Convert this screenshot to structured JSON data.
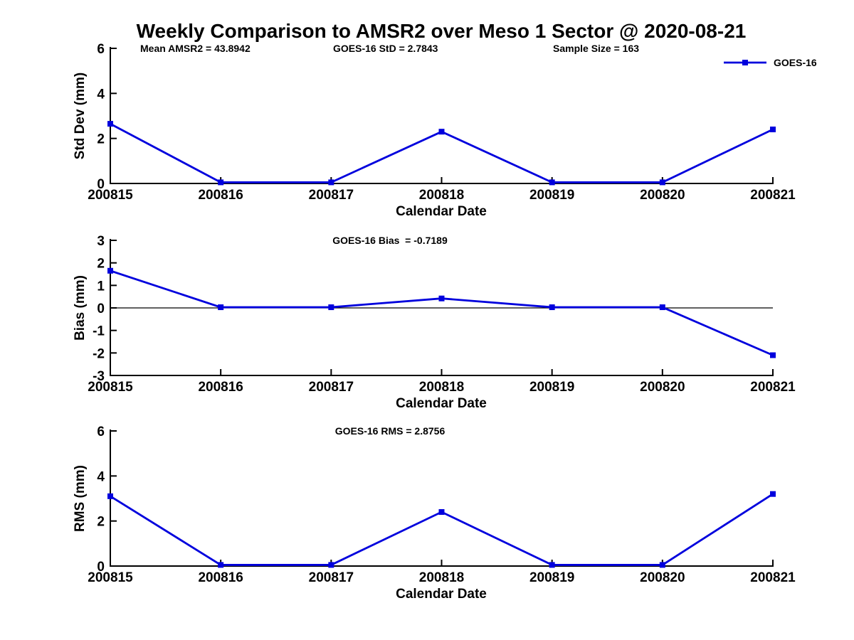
{
  "title": "Weekly Comparison to AMSR2 over Meso 1 Sector @ 2020-08-21",
  "legend": {
    "label": "GOES-16",
    "position": "top-right"
  },
  "colors": {
    "series": "#0000DD",
    "axis": "#000000",
    "zero_line": "#000000",
    "background": "#ffffff"
  },
  "chart_data": [
    {
      "type": "line",
      "name": "std-dev",
      "categories": [
        "200815",
        "200816",
        "200817",
        "200818",
        "200819",
        "200820",
        "200821"
      ],
      "series": [
        {
          "name": "GOES-16",
          "values": [
            2.65,
            0.05,
            0.05,
            2.3,
            0.05,
            0.05,
            2.4
          ]
        }
      ],
      "xlabel": "Calendar Date",
      "ylabel": "Std Dev (mm)",
      "ylim": [
        0,
        6
      ],
      "yticks": [
        0,
        2,
        4,
        6
      ],
      "grid": false,
      "legend": true,
      "subtitle": "",
      "annotations": [
        "Mean AMSR2 = 43.8942",
        "GOES-16 StD = 2.7843",
        "Sample Size = 163"
      ],
      "zero_line": false,
      "marker": "square"
    },
    {
      "type": "line",
      "name": "bias",
      "categories": [
        "200815",
        "200816",
        "200817",
        "200818",
        "200819",
        "200820",
        "200821"
      ],
      "series": [
        {
          "name": "GOES-16",
          "values": [
            1.65,
            0.03,
            0.03,
            0.42,
            0.03,
            0.03,
            -2.1
          ]
        }
      ],
      "xlabel": "Calendar Date",
      "ylabel": "Bias (mm)",
      "ylim": [
        -3,
        3
      ],
      "yticks": [
        -3,
        -2,
        -1,
        0,
        1,
        2,
        3
      ],
      "grid": false,
      "legend": false,
      "subtitle": "GOES-16 Bias  = -0.7189",
      "annotations": [],
      "zero_line": true,
      "marker": "square"
    },
    {
      "type": "line",
      "name": "rms",
      "categories": [
        "200815",
        "200816",
        "200817",
        "200818",
        "200819",
        "200820",
        "200821"
      ],
      "series": [
        {
          "name": "GOES-16",
          "values": [
            3.1,
            0.05,
            0.05,
            2.4,
            0.05,
            0.05,
            3.2
          ]
        }
      ],
      "xlabel": "Calendar Date",
      "ylabel": "RMS (mm)",
      "ylim": [
        0,
        6
      ],
      "yticks": [
        0,
        2,
        4,
        6
      ],
      "grid": false,
      "legend": false,
      "subtitle": "GOES-16 RMS = 2.8756",
      "annotations": [],
      "zero_line": false,
      "marker": "square"
    }
  ]
}
